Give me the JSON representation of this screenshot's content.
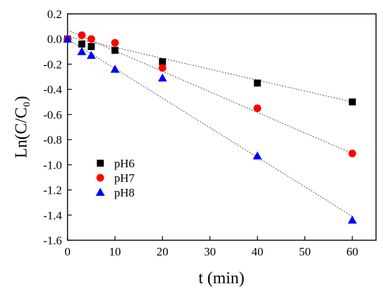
{
  "chart_data": {
    "type": "scatter",
    "xlabel": "t (min)",
    "ylabel": "Ln(C/C₀)",
    "xlim": [
      0,
      65
    ],
    "ylim": [
      -1.6,
      0.2
    ],
    "x_ticks": [
      "0",
      "10",
      "20",
      "30",
      "40",
      "50",
      "60"
    ],
    "y_ticks": [
      "0.2",
      "0.0",
      "-0.2",
      "-0.4",
      "-0.6",
      "-0.8",
      "-1.0",
      "-1.2",
      "-1.4",
      "-1.6"
    ],
    "grid": false,
    "legend_position": "left",
    "series": [
      {
        "name": "pH6",
        "marker": "square",
        "color": "#000000",
        "points": [
          [
            0,
            0.0
          ],
          [
            3,
            -0.04
          ],
          [
            5,
            -0.06
          ],
          [
            10,
            -0.09
          ],
          [
            20,
            -0.18
          ],
          [
            40,
            -0.35
          ],
          [
            60,
            -0.5
          ]
        ],
        "fit_line": [
          [
            0,
            0.02
          ],
          [
            60,
            -0.5
          ]
        ]
      },
      {
        "name": "pH7",
        "marker": "circle",
        "color": "#ff0000",
        "points": [
          [
            0,
            0.0
          ],
          [
            3,
            0.03
          ],
          [
            5,
            0.0
          ],
          [
            10,
            -0.03
          ],
          [
            20,
            -0.23
          ],
          [
            40,
            -0.55
          ],
          [
            60,
            -0.91
          ]
        ],
        "fit_line": [
          [
            0,
            0.07
          ],
          [
            60,
            -0.91
          ]
        ]
      },
      {
        "name": "pH8",
        "marker": "triangle",
        "color": "#0000ff",
        "points": [
          [
            0,
            0.0
          ],
          [
            3,
            -0.1
          ],
          [
            5,
            -0.13
          ],
          [
            10,
            -0.24
          ],
          [
            20,
            -0.31
          ],
          [
            40,
            -0.93
          ],
          [
            60,
            -1.44
          ]
        ],
        "fit_line": [
          [
            0,
            0.0
          ],
          [
            60,
            -1.41
          ]
        ]
      }
    ]
  }
}
